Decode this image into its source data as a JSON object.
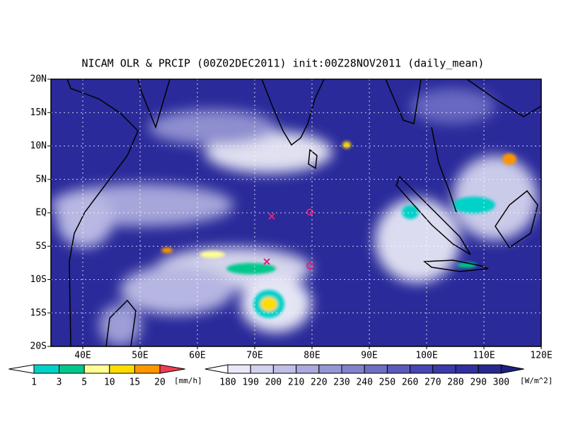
{
  "title": "NICAM OLR & PRCIP (00Z02DEC2011) init:00Z28NOV2011 (daily_mean)",
  "map": {
    "lat_labels": [
      "20N",
      "15N",
      "10N",
      "5N",
      "EQ",
      "5S",
      "10S",
      "15S",
      "20S"
    ],
    "lon_labels": [
      "40E",
      "50E",
      "60E",
      "70E",
      "80E",
      "90E",
      "100E",
      "110E",
      "120E"
    ]
  },
  "precip_colorbar": {
    "labels": [
      "1",
      "3",
      "5",
      "10",
      "15",
      "20"
    ],
    "unit": "[mm/h]",
    "colors": [
      "#ffffff",
      "#00d2c8",
      "#00c88c",
      "#ffff96",
      "#ffdc00",
      "#ff9600",
      "#f03c50"
    ]
  },
  "olr_colorbar": {
    "labels": [
      "180",
      "190",
      "200",
      "210",
      "220",
      "230",
      "240",
      "250",
      "260",
      "270",
      "280",
      "290",
      "300"
    ],
    "unit": "[W/m^2]",
    "colors": [
      "#ffffff",
      "#e8e8f6",
      "#d2d2ee",
      "#bebee6",
      "#aaaade",
      "#9696d6",
      "#8282cc",
      "#6e6ec4",
      "#5a5abc",
      "#4646b4",
      "#3a3aaa",
      "#30309e",
      "#282890",
      "#20207e"
    ]
  }
}
